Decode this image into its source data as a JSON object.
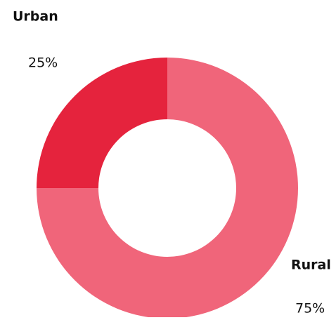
{
  "chart_data": {
    "type": "donut",
    "categories": [
      "Urban",
      "Rural"
    ],
    "values": [
      25,
      75
    ],
    "value_labels": [
      "25%",
      "75%"
    ],
    "colors": [
      "#e5233d",
      "#f0657a"
    ]
  }
}
